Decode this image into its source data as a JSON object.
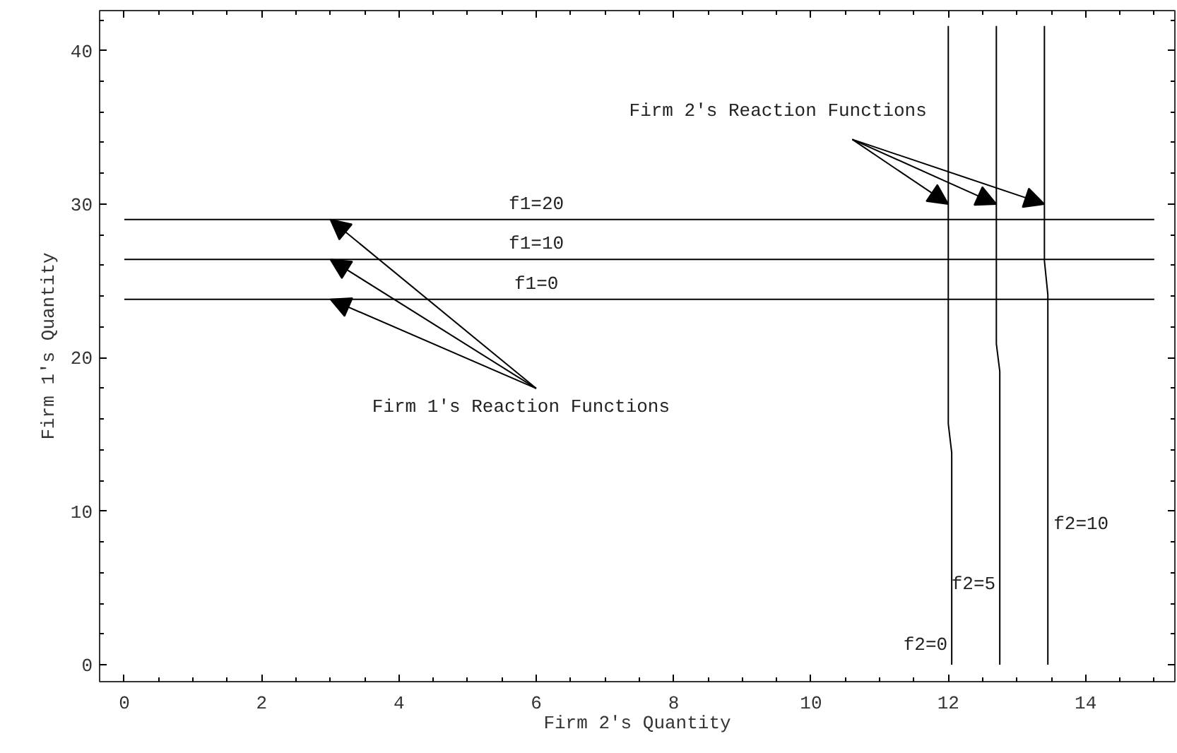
{
  "chart_data": {
    "type": "line",
    "xlabel": "Firm 2's Quantity",
    "ylabel": "Firm 1's Quantity",
    "xlim": [
      -0.36,
      15.3
    ],
    "ylim": [
      -1.1,
      42.6
    ],
    "xticks": [
      0,
      2,
      4,
      6,
      8,
      10,
      12,
      14
    ],
    "yticks": [
      0,
      10,
      20,
      30,
      40
    ],
    "grid": false,
    "legend": false,
    "marker": "none",
    "line_style": "solid",
    "series": [
      {
        "name": "f1=0",
        "color": "#000000",
        "x": [
          0,
          15
        ],
        "values": [
          23.8,
          23.8
        ]
      },
      {
        "name": "f1=10",
        "color": "#000000",
        "x": [
          0,
          15
        ],
        "values": [
          26.4,
          26.4
        ]
      },
      {
        "name": "f1=20",
        "color": "#000000",
        "x": [
          0,
          15
        ],
        "values": [
          29.0,
          29.0
        ]
      },
      {
        "name": "f2=0",
        "color": "#000000",
        "x": [
          12.05,
          12.05,
          12.0,
          12.0
        ],
        "values": [
          0,
          13.8,
          15.7,
          41.6
        ]
      },
      {
        "name": "f2=5",
        "color": "#000000",
        "x": [
          12.75,
          12.75,
          12.7,
          12.7
        ],
        "values": [
          0,
          19.1,
          20.9,
          41.6
        ]
      },
      {
        "name": "f2=10",
        "color": "#000000",
        "x": [
          13.45,
          13.45,
          13.4,
          13.4
        ],
        "values": [
          0,
          24.1,
          26.3,
          41.6
        ]
      }
    ],
    "annotations": [
      {
        "text": "Firm 1's Reaction  Functions",
        "x": 3.0,
        "y": 26.4
      },
      {
        "text": "Firm 2's Reaction  Functions",
        "x": 12.7,
        "y": 30.0
      }
    ]
  }
}
